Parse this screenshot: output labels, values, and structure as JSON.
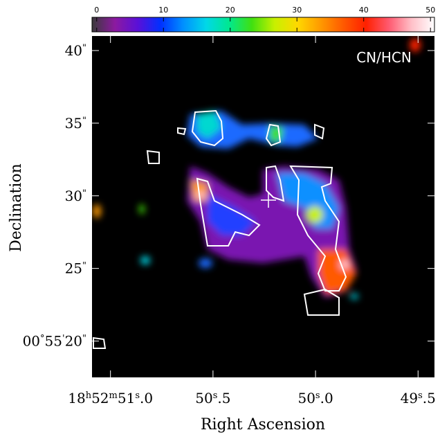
{
  "chart_data": {
    "type": "image",
    "annotation": "CN/HCN",
    "x_label": "Right Ascension",
    "y_label": "Declination",
    "xlim": [
      51.09,
      49.42
    ],
    "xticks": [
      {
        "value": 51.0,
        "label": "18h52m51s.0"
      },
      {
        "value": 50.5,
        "label": "50s.5"
      },
      {
        "value": 50.0,
        "label": "50s.0"
      },
      {
        "value": 49.5,
        "label": "49s.5"
      }
    ],
    "ylim": [
      17.5,
      41
    ],
    "yticks": [
      {
        "value": 40,
        "label": "40\""
      },
      {
        "value": 35,
        "label": "35\""
      },
      {
        "value": 30,
        "label": "30\""
      },
      {
        "value": 25,
        "label": "25\""
      },
      {
        "value": 20,
        "label": "00°55'20\""
      }
    ],
    "colorbar": {
      "clim": [
        -0.7,
        50.6
      ],
      "ticks": [
        0,
        10,
        20,
        30,
        40,
        50
      ],
      "colors": [
        "#3a3a3a",
        "#8c1aa0",
        "#5a10d8",
        "#0030ff",
        "#0090ff",
        "#00d8e8",
        "#00e890",
        "#40e010",
        "#c8f000",
        "#ffd800",
        "#ff9a00",
        "#ff5a00",
        "#ff2000",
        "#ff5a70",
        "#ffc0c8",
        "#ffffff"
      ]
    }
  }
}
